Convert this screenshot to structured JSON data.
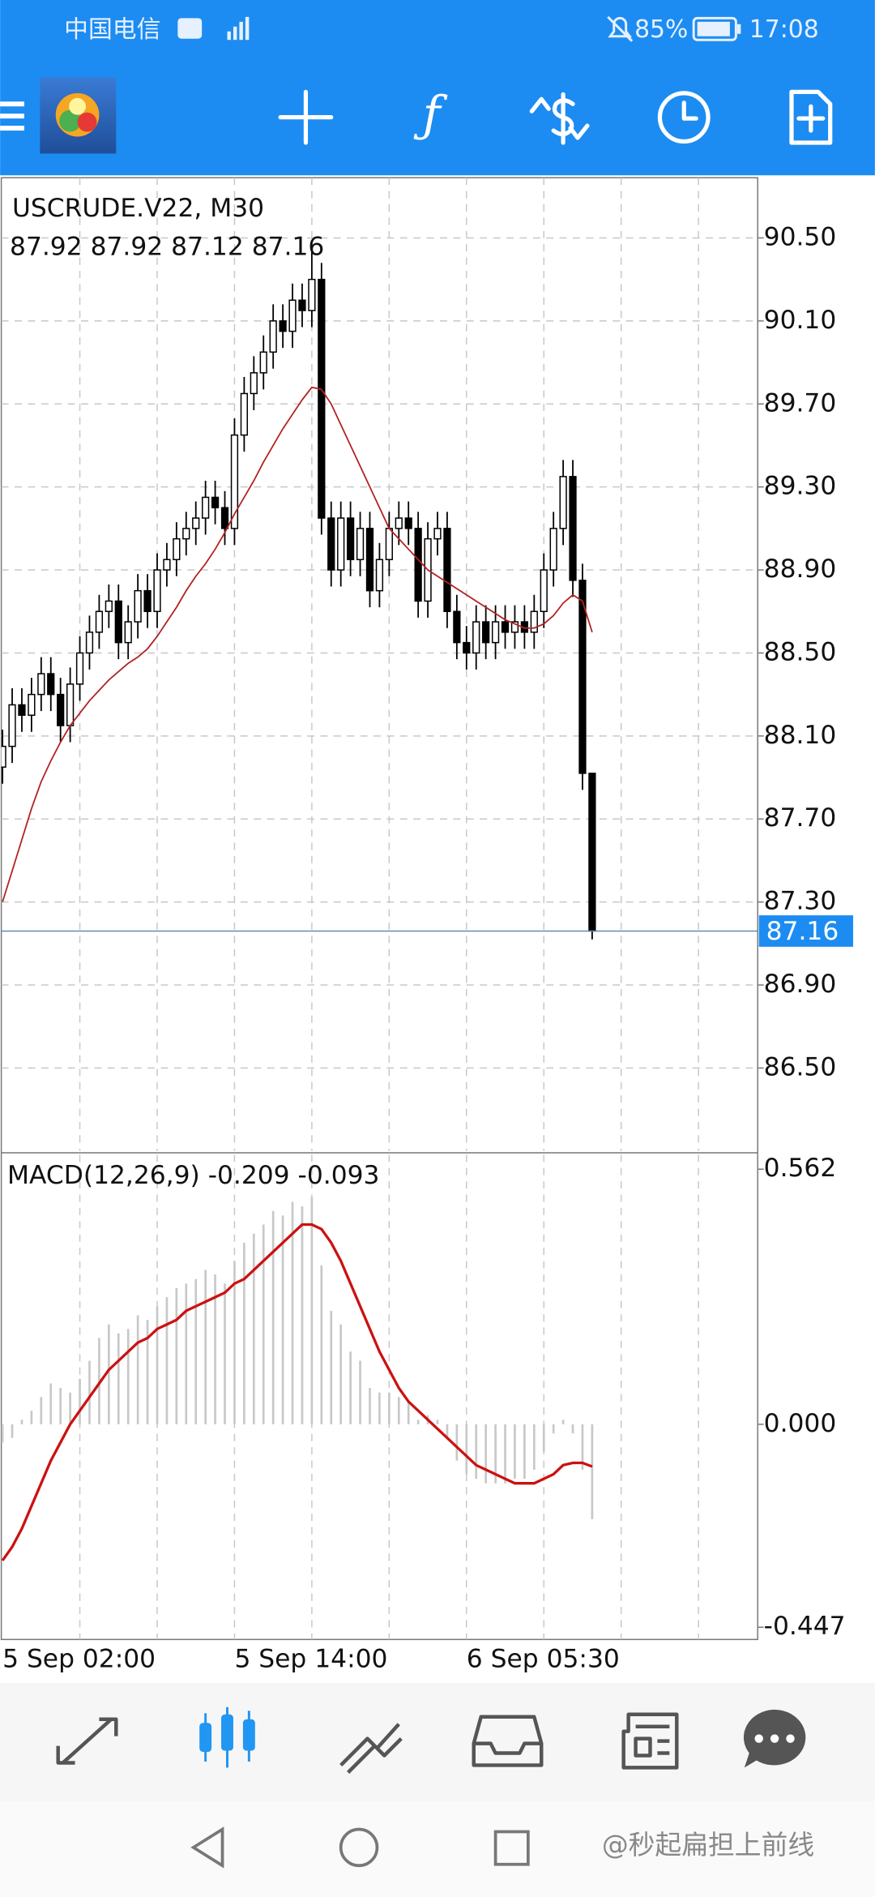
{
  "status_bar": {
    "carrier": "中国电信",
    "battery": "85%",
    "time": "17:08"
  },
  "chart_data": [
    {
      "type": "candlestick",
      "title": "USCRUDE.V22, M30",
      "categories": [
        "5 Sep 02:00",
        null,
        null,
        null,
        null,
        null,
        null,
        null,
        null,
        null,
        null,
        null,
        null,
        null,
        null,
        null,
        null,
        null,
        null,
        null,
        null,
        null,
        null,
        null,
        "5 Sep 14:00",
        null,
        null,
        null,
        null,
        null,
        null,
        null,
        null,
        null,
        null,
        null,
        null,
        null,
        null,
        null,
        null,
        null,
        null,
        null,
        null,
        null,
        null,
        null,
        "6 Sep 05:30",
        null,
        null,
        null,
        null,
        null,
        null,
        null,
        null,
        null,
        null,
        null,
        null,
        null
      ],
      "open": [
        87.95,
        88.05,
        88.25,
        88.2,
        88.3,
        88.4,
        88.3,
        88.15,
        88.35,
        88.5,
        88.6,
        88.7,
        88.75,
        88.55,
        88.65,
        88.8,
        88.7,
        88.9,
        88.95,
        89.05,
        89.1,
        89.15,
        89.25,
        89.2,
        89.1,
        89.55,
        89.75,
        89.85,
        89.95,
        90.1,
        90.05,
        90.2,
        90.15,
        90.3,
        89.15,
        88.9,
        89.15,
        88.95,
        89.1,
        88.8,
        88.95,
        89.1,
        89.15,
        89.1,
        88.75,
        89.05,
        89.1,
        88.7,
        88.55,
        88.5,
        88.65,
        88.55,
        88.65,
        88.6,
        88.65,
        88.6,
        88.7,
        88.9,
        89.1,
        89.35,
        88.85,
        87.92
      ],
      "high": [
        88.13,
        88.33,
        88.33,
        88.38,
        88.48,
        88.48,
        88.38,
        88.43,
        88.58,
        88.68,
        88.78,
        88.83,
        88.83,
        88.73,
        88.88,
        88.88,
        88.98,
        89.03,
        89.13,
        89.18,
        89.23,
        89.33,
        89.33,
        89.28,
        89.63,
        89.83,
        89.93,
        90.03,
        90.18,
        90.18,
        90.28,
        90.28,
        90.44,
        90.38,
        89.23,
        89.23,
        89.23,
        89.18,
        89.18,
        89.03,
        89.18,
        89.23,
        89.23,
        89.18,
        89.13,
        89.18,
        89.18,
        88.78,
        88.63,
        88.73,
        88.73,
        88.73,
        88.73,
        88.73,
        88.73,
        88.78,
        88.98,
        89.18,
        89.43,
        89.43,
        88.93,
        87.92
      ],
      "low": [
        87.87,
        87.97,
        88.12,
        88.12,
        88.22,
        88.22,
        88.07,
        88.07,
        88.27,
        88.42,
        88.52,
        88.62,
        88.47,
        88.47,
        88.57,
        88.62,
        88.62,
        88.82,
        88.87,
        88.97,
        89.02,
        89.07,
        89.12,
        89.02,
        89.02,
        89.47,
        89.67,
        89.77,
        89.87,
        89.97,
        89.97,
        90.07,
        90.07,
        89.07,
        88.82,
        88.82,
        88.87,
        88.87,
        88.72,
        88.72,
        88.87,
        89.02,
        89.02,
        88.67,
        88.67,
        88.97,
        88.62,
        88.47,
        88.42,
        88.42,
        88.47,
        88.47,
        88.52,
        88.52,
        88.52,
        88.52,
        88.62,
        88.82,
        89.02,
        88.77,
        87.84,
        87.12
      ],
      "close": [
        88.05,
        88.25,
        88.2,
        88.3,
        88.4,
        88.3,
        88.15,
        88.35,
        88.5,
        88.6,
        88.7,
        88.75,
        88.55,
        88.65,
        88.8,
        88.7,
        88.9,
        88.95,
        89.05,
        89.1,
        89.15,
        89.25,
        89.2,
        89.1,
        89.55,
        89.75,
        89.85,
        89.95,
        90.1,
        90.05,
        90.2,
        90.15,
        90.3,
        89.15,
        88.9,
        89.15,
        88.95,
        89.1,
        88.8,
        88.95,
        89.1,
        89.15,
        89.1,
        88.75,
        89.05,
        89.1,
        88.7,
        88.55,
        88.5,
        88.65,
        88.55,
        88.65,
        88.6,
        88.65,
        88.6,
        88.7,
        88.9,
        89.1,
        89.35,
        88.85,
        87.92,
        87.16
      ],
      "ma": {
        "color": "#b22222",
        "values": [
          87.3,
          87.45,
          87.6,
          87.75,
          87.88,
          87.98,
          88.07,
          88.15,
          88.21,
          88.27,
          88.32,
          88.37,
          88.41,
          88.45,
          88.48,
          88.52,
          88.58,
          88.65,
          88.72,
          88.8,
          88.87,
          88.93,
          89.0,
          89.08,
          89.17,
          89.25,
          89.33,
          89.42,
          89.5,
          89.58,
          89.65,
          89.72,
          89.78,
          89.77,
          89.7,
          89.6,
          89.5,
          89.4,
          89.3,
          89.2,
          89.1,
          89.05,
          89.0,
          88.95,
          88.9,
          88.87,
          88.84,
          88.81,
          88.78,
          88.75,
          88.72,
          88.69,
          88.66,
          88.64,
          88.62,
          88.62,
          88.64,
          88.68,
          88.74,
          88.78,
          88.75,
          88.6
        ]
      },
      "bull_color": "#ffffff",
      "bear_color": "#000000",
      "price_line_color": "#5b8fb0",
      "ylim": [
        86.1,
        90.79
      ],
      "yticks": [
        {
          "value": 86.5,
          "label": "86.50"
        },
        {
          "value": 86.9,
          "label": "86.90"
        },
        {
          "value": 87.3,
          "label": "87.30"
        },
        {
          "value": 87.7,
          "label": "87.70"
        },
        {
          "value": 88.1,
          "label": "88.10"
        },
        {
          "value": 88.5,
          "label": "88.50"
        },
        {
          "value": 88.9,
          "label": "88.90"
        },
        {
          "value": 89.3,
          "label": "89.30"
        },
        {
          "value": 89.7,
          "label": "89.70"
        },
        {
          "value": 90.1,
          "label": "90.10"
        },
        {
          "value": 90.5,
          "label": "90.50"
        }
      ],
      "grid": true
    },
    {
      "type": "macd",
      "title": "MACD(12,26,9)",
      "histogram": {
        "color": "#c8c8c8",
        "values": [
          -0.04,
          -0.03,
          0.01,
          0.03,
          0.06,
          0.09,
          0.08,
          0.07,
          0.1,
          0.14,
          0.19,
          0.22,
          0.2,
          0.21,
          0.24,
          0.23,
          0.26,
          0.28,
          0.3,
          0.31,
          0.32,
          0.34,
          0.33,
          0.31,
          0.36,
          0.4,
          0.42,
          0.44,
          0.47,
          0.46,
          0.49,
          0.48,
          0.5,
          0.35,
          0.25,
          0.22,
          0.16,
          0.14,
          0.08,
          0.07,
          0.07,
          0.06,
          0.05,
          0.01,
          0.02,
          0.01,
          -0.03,
          -0.08,
          -0.11,
          -0.12,
          -0.13,
          -0.13,
          -0.13,
          -0.12,
          -0.12,
          -0.1,
          -0.06,
          -0.02,
          0.01,
          -0.02,
          -0.1,
          -0.209
        ]
      },
      "signal": {
        "color": "#cc1111",
        "values": [
          -0.3,
          -0.27,
          -0.23,
          -0.18,
          -0.13,
          -0.08,
          -0.04,
          0.0,
          0.03,
          0.06,
          0.09,
          0.12,
          0.14,
          0.16,
          0.18,
          0.19,
          0.21,
          0.22,
          0.23,
          0.25,
          0.26,
          0.27,
          0.28,
          0.29,
          0.31,
          0.32,
          0.34,
          0.36,
          0.38,
          0.4,
          0.42,
          0.44,
          0.44,
          0.43,
          0.4,
          0.36,
          0.31,
          0.26,
          0.21,
          0.16,
          0.12,
          0.08,
          0.05,
          0.03,
          0.01,
          -0.01,
          -0.03,
          -0.05,
          -0.07,
          -0.09,
          -0.1,
          -0.11,
          -0.12,
          -0.13,
          -0.13,
          -0.13,
          -0.12,
          -0.11,
          -0.09,
          -0.085,
          -0.085,
          -0.093
        ]
      },
      "ylim": [
        -0.474,
        0.594
      ],
      "yticks": [
        0.562,
        {
          "value": 0,
          "label": "0.000"
        },
        -0.447
      ],
      "grid": false
    }
  ],
  "watermark": "@秒起扁担上前线"
}
